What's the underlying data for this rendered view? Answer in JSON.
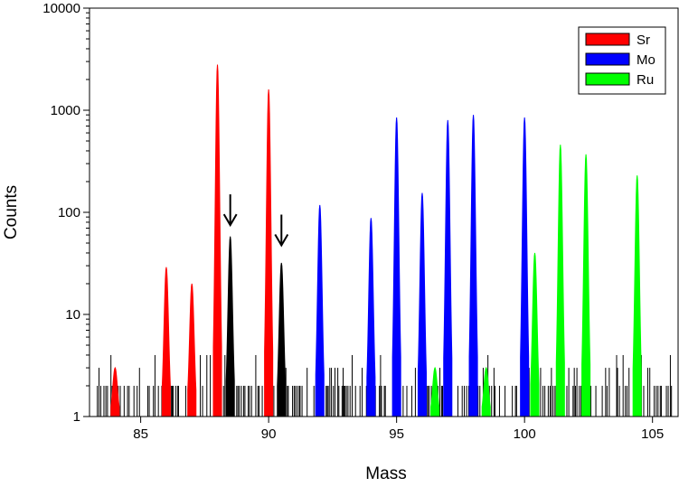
{
  "chart_data": {
    "type": "bar",
    "title": "",
    "xlabel": "Mass",
    "ylabel": "Counts",
    "xlim": [
      83,
      106
    ],
    "ylim": [
      1,
      10000
    ],
    "y_scale": "log",
    "x_ticks": [
      85,
      90,
      95,
      100,
      105
    ],
    "x_tick_labels": [
      "85",
      "90",
      "95",
      "100",
      "105"
    ],
    "y_ticks": [
      1,
      10,
      100,
      1000,
      10000
    ],
    "y_tick_labels": [
      "1",
      "10",
      "100",
      "1000",
      "10000"
    ],
    "grid": false,
    "legend_position": "top-right",
    "colors": {
      "Sr": "#ff0000",
      "Mo": "#0000ff",
      "Ru": "#00ff00",
      "background": "#000000"
    },
    "series": [
      {
        "name": "Sr",
        "peaks": [
          {
            "mass": 84,
            "counts": 3
          },
          {
            "mass": 86,
            "counts": 29
          },
          {
            "mass": 87,
            "counts": 20
          },
          {
            "mass": 88,
            "counts": 2800
          },
          {
            "mass": 90,
            "counts": 1600
          }
        ]
      },
      {
        "name": "Mo",
        "peaks": [
          {
            "mass": 92,
            "counts": 118
          },
          {
            "mass": 94,
            "counts": 88
          },
          {
            "mass": 95,
            "counts": 850
          },
          {
            "mass": 96,
            "counts": 155
          },
          {
            "mass": 97,
            "counts": 800
          },
          {
            "mass": 98,
            "counts": 900
          },
          {
            "mass": 100,
            "counts": 850
          }
        ]
      },
      {
        "name": "Ru",
        "peaks": [
          {
            "mass": 96.5,
            "counts": 3
          },
          {
            "mass": 98.5,
            "counts": 3
          },
          {
            "mass": 100.4,
            "counts": 40
          },
          {
            "mass": 101.4,
            "counts": 460
          },
          {
            "mass": 102.4,
            "counts": 370
          },
          {
            "mass": 104.4,
            "counts": 230
          }
        ]
      },
      {
        "name": "",
        "peaks": [
          {
            "mass": 88.5,
            "counts": 58
          },
          {
            "mass": 90.5,
            "counts": 32
          }
        ]
      }
    ],
    "annotations": [
      {
        "type": "arrow-down",
        "mass": 88.5,
        "counts": 150
      },
      {
        "type": "arrow-down",
        "mass": 90.5,
        "counts": 95
      }
    ],
    "legend": [
      "Sr",
      "Mo",
      "Ru"
    ]
  }
}
